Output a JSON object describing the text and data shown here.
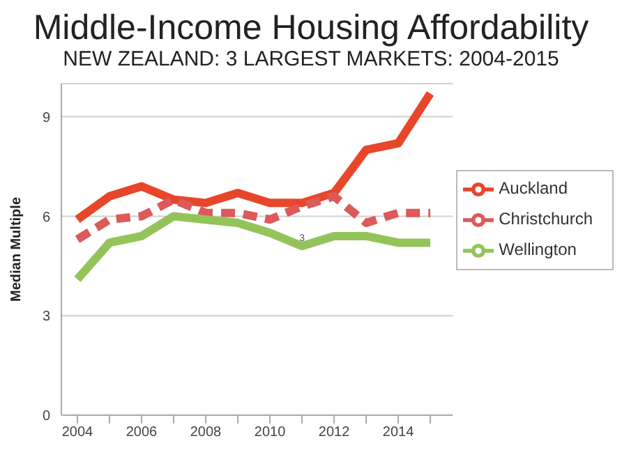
{
  "chart_data": {
    "type": "line",
    "title": "Middle-Income Housing Affordability",
    "subtitle": "NEW ZEALAND: 3 LARGEST MARKETS: 2004-2015",
    "ylabel": "Median Multiple",
    "x": [
      2004,
      2005,
      2006,
      2007,
      2008,
      2009,
      2010,
      2011,
      2012,
      2013,
      2014,
      2015
    ],
    "series": [
      {
        "name": "Auckland",
        "color": "#e8462a",
        "values": [
          5.9,
          6.6,
          6.9,
          6.5,
          6.4,
          6.7,
          6.4,
          6.4,
          6.7,
          8.0,
          8.2,
          9.7
        ]
      },
      {
        "name": "Christchurch",
        "color": "#dc5a5a",
        "line_style": "dashed",
        "values": [
          5.3,
          5.9,
          6.0,
          6.5,
          6.1,
          6.1,
          5.9,
          6.3,
          6.6,
          5.8,
          6.1,
          6.1
        ]
      },
      {
        "name": "Wellington",
        "color": "#93c45a",
        "values": [
          4.1,
          5.2,
          5.4,
          6.0,
          5.9,
          5.8,
          5.5,
          5.1,
          5.4,
          5.4,
          5.2,
          5.2
        ]
      }
    ],
    "xlim": [
      2003.5,
      2015.7
    ],
    "xticks": [
      2004,
      {
        "value": 2005,
        "label": null
      },
      2006,
      {
        "value": 2007,
        "label": null
      },
      2008,
      {
        "value": 2009,
        "label": null
      },
      2010,
      {
        "value": 2011,
        "label": null
      },
      2012,
      {
        "value": 2013,
        "label": null
      },
      2014,
      {
        "value": 2015,
        "label": null
      }
    ],
    "ylim": [
      0,
      10
    ],
    "yticks": [
      0,
      3,
      6,
      9
    ],
    "grid": "y",
    "legend": "right",
    "line_style": "solid",
    "marker": "none",
    "annotations": [
      {
        "text": "3",
        "x": 2011,
        "y": 5.35
      }
    ]
  }
}
